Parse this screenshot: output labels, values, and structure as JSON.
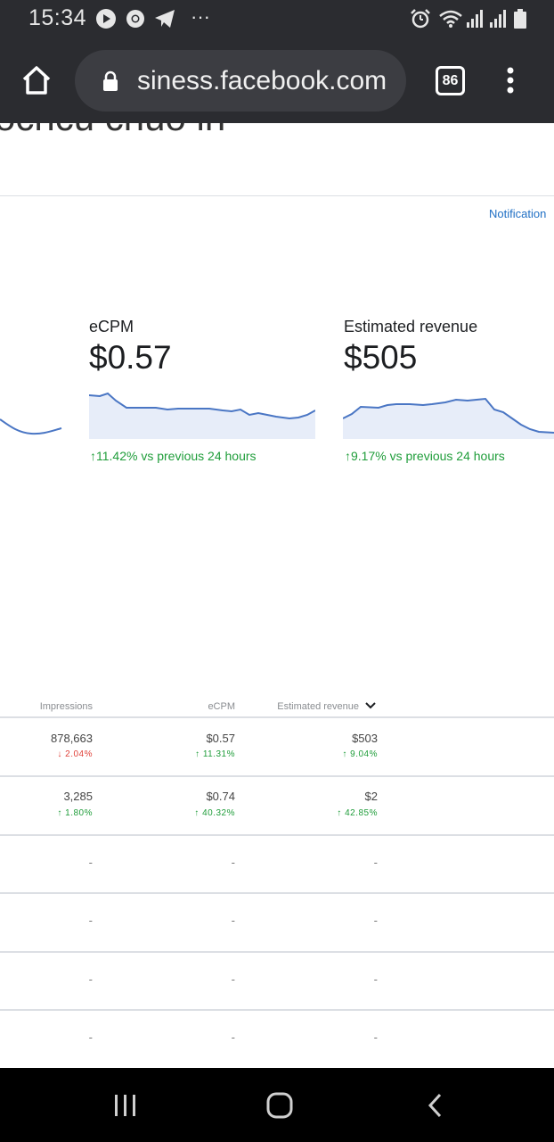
{
  "status_bar": {
    "time": "15:34",
    "icons": [
      "youtube-icon",
      "chrome-icon",
      "telegram-icon",
      "more-notifications-icon",
      "alarm-icon",
      "wifi-icon",
      "signal-icon",
      "signal-icon",
      "battery-icon"
    ],
    "more_dots": "···"
  },
  "browser": {
    "url": "siness.facebook.com",
    "tab_count": "86"
  },
  "page": {
    "heading_partial": "ocncu cnuo in",
    "notification_link": "Notification"
  },
  "metrics": [
    {
      "label": "eCPM",
      "value": "$0.57",
      "change": "11.42% vs previous 24 hours",
      "direction": "up"
    },
    {
      "label": "Estimated revenue",
      "value": "$505",
      "change": "9.17% vs previous 24 hours",
      "direction": "up"
    }
  ],
  "table": {
    "headers": {
      "impressions": "Impressions",
      "ecpm": "eCPM",
      "revenue": "Estimated revenue"
    },
    "rows": [
      {
        "impressions": "878,663",
        "impressions_change": "2.04%",
        "impressions_dir": "down",
        "ecpm": "$0.57",
        "ecpm_change": "11.31%",
        "ecpm_dir": "up",
        "revenue": "$503",
        "revenue_change": "9.04%",
        "revenue_dir": "up"
      },
      {
        "impressions": "3,285",
        "impressions_change": "1.80%",
        "impressions_dir": "up",
        "ecpm": "$0.74",
        "ecpm_change": "40.32%",
        "ecpm_dir": "up",
        "revenue": "$2",
        "revenue_change": "42.85%",
        "revenue_dir": "up"
      },
      {
        "impressions": "-",
        "ecpm": "-",
        "revenue": "-"
      },
      {
        "impressions": "-",
        "ecpm": "-",
        "revenue": "-"
      },
      {
        "impressions": "-",
        "ecpm": "-",
        "revenue": "-"
      },
      {
        "impressions": "-",
        "ecpm": "-",
        "revenue": "-"
      }
    ]
  },
  "colors": {
    "accent_link": "#1f6fc4",
    "positive": "#1f9d3a",
    "negative": "#e0423a",
    "sparkline": "#4a76c4",
    "sparkline_fill": "#e7edf9"
  }
}
